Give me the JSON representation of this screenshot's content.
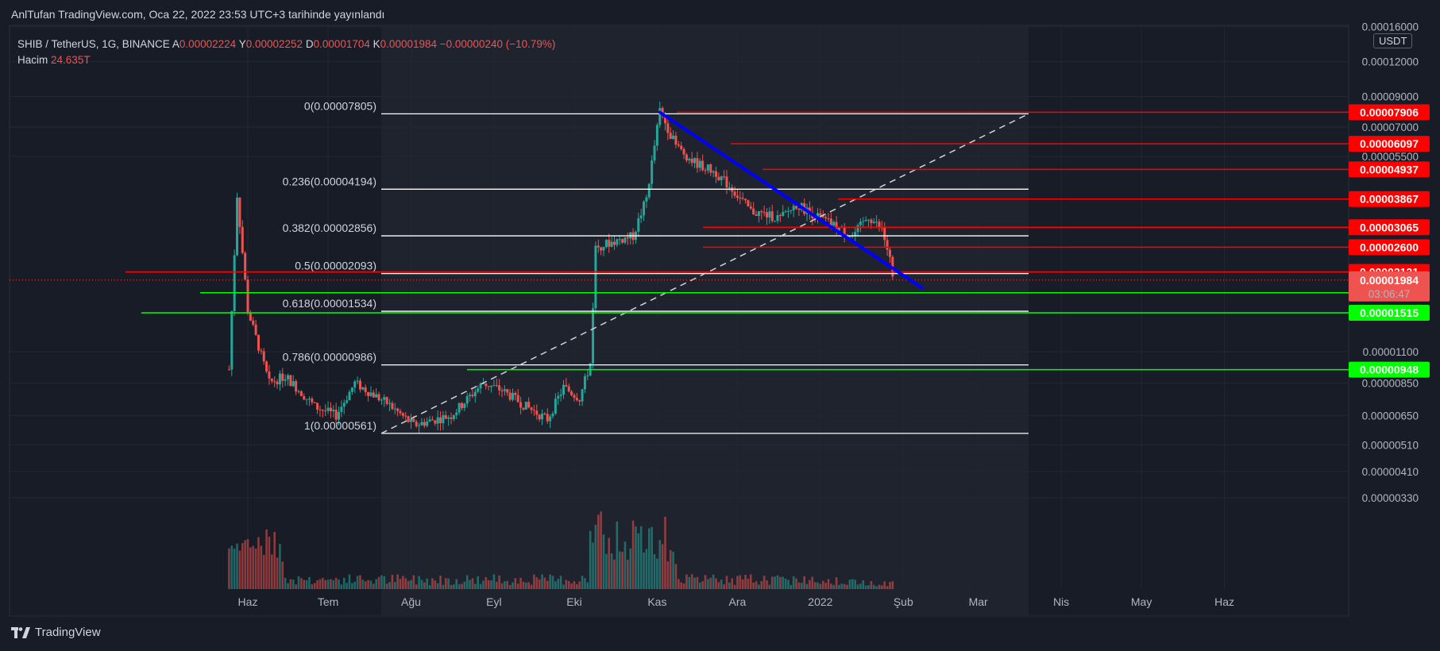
{
  "header": {
    "published_text": "AnlTufan TradingView.com, Oca 22, 2022 23:53 UTC+3 tarihinde yayınlandı"
  },
  "legend": {
    "symbol": "SHIB / TetherUS, 1G, BINANCE",
    "open_label": "A",
    "open_value": "0.00002224",
    "high_label": "Y",
    "high_value": "0.00002252",
    "low_label": "D",
    "low_value": "0.00001704",
    "close_label": "K",
    "close_value": "0.00001984",
    "change": "−0.00000240 (−10.79%)",
    "volume_label": "Hacim",
    "volume_value": "24.635T"
  },
  "currency_badge": "USDT",
  "footer": {
    "brand": "TradingView"
  },
  "colors": {
    "background": "#181c27",
    "candle_up": "#26a69a",
    "candle_down": "#ef5350",
    "resistance": "#ff0000",
    "support": "#00ff00",
    "trendline": "#0000ff",
    "fib_line": "#ffffff"
  },
  "chart_data": {
    "type": "candlestick",
    "y_scale": "log",
    "price_ticks": [
      "0.00016000",
      "0.00012000",
      "0.00009000",
      "0.00007000",
      "0.00005500",
      "0.00001100",
      "0.00000850",
      "0.00000650",
      "0.00000510",
      "0.00000410",
      "0.00000330"
    ],
    "month_labels": [
      "Haz",
      "Tem",
      "Ağu",
      "Eyl",
      "Eki",
      "Kas",
      "Ara",
      "2022",
      "Şub",
      "Mar",
      "Nis",
      "May",
      "Haz"
    ],
    "fibonacci": [
      {
        "label": "0(0.00007805)",
        "price": 7.805e-05
      },
      {
        "label": "0.236(0.00004194)",
        "price": 4.194e-05
      },
      {
        "label": "0.382(0.00002856)",
        "price": 2.856e-05
      },
      {
        "label": "0.5(0.00002093)",
        "price": 2.093e-05
      },
      {
        "label": "0.618(0.00001534)",
        "price": 1.534e-05
      },
      {
        "label": "0.786(0.00000986)",
        "price": 9.86e-06
      },
      {
        "label": "1(0.00000561)",
        "price": 5.61e-06
      }
    ],
    "resistance_levels": [
      "0.00007906",
      "0.00006097",
      "0.00004937",
      "0.00003867",
      "0.00003065",
      "0.00002600",
      "0.00002121"
    ],
    "support_levels": [
      "0.00001787",
      "0.00001515",
      "0.00000948"
    ],
    "last_price": "0.00001984",
    "countdown": "03:06:47",
    "trendline": {
      "from_price": 7.9e-05,
      "to_price": 1.86e-05,
      "from": "Kas",
      "to": "Şub"
    }
  }
}
